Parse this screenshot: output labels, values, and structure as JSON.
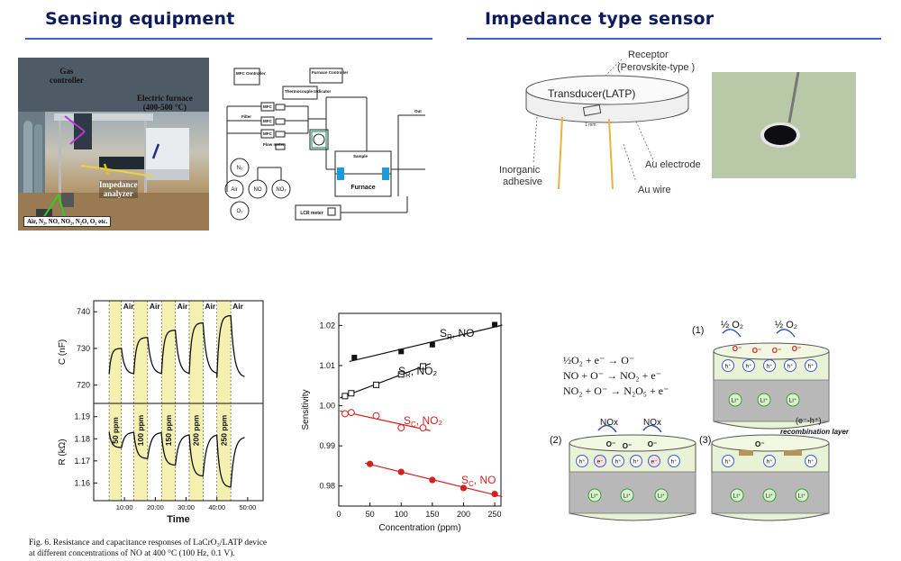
{
  "sensing": {
    "title": "Sensing equipment",
    "photo_labels": {
      "gas_controller_1": "Gas",
      "gas_controller_2": "controller",
      "furnace_1": "Electric furnace",
      "furnace_2": "(400-500 °C)",
      "impedance_1": "Impedance",
      "impedance_2": "analyzer",
      "gases": "Air, N₂, NO, NO₂, N₂O, O₂ etc."
    },
    "schematic": {
      "mfc_controller": "MFC Controller",
      "furnace_controller": "Furnace Controller",
      "thermocouple": "Thermocouple Indicator",
      "mfc": "MFC",
      "filter": "Filter",
      "flow_meter": "Flow meter",
      "n2": "N₂",
      "air": "Air",
      "no": "NO",
      "no2": "NO₂",
      "o2": "O₂",
      "sample": "Sample",
      "furnace": "Furnace",
      "out": "Out",
      "lcr": "LCR meter"
    }
  },
  "impedance_sensor": {
    "title": "Impedance type sensor",
    "receptor_1": "Receptor",
    "receptor_2": "(Perovskite-type )",
    "transducer": "Transducer(LATP)",
    "scale": "1 mm",
    "inorganic_1": "Inorganic",
    "inorganic_2": "adhesive",
    "au_electrode": "Au electrode",
    "au_wire": "Au wire"
  },
  "figure6": {
    "caption_1": "Fig. 6.   Resistance and capacitance responses of LaCrO₃/LATP device",
    "caption_2": "at different concentrations of NO at 400 °C (100 Hz, 0.1 V)."
  },
  "mechanism": {
    "eq1": "½O₂ + e⁻ → O⁻",
    "eq2": "NO + O⁻ → NO₂ + e⁻",
    "eq3": "NO₂ + O⁻ → N₂O₅ + e⁻",
    "p1": "(1)",
    "p2": "(2)",
    "p3": "(3)",
    "half_o2": "½ O₂",
    "nox": "NOx",
    "eh": "(e⁻-h⁺)",
    "recombination": "recombination layer",
    "hplus": "h⁺",
    "eminus": "e⁻",
    "ominus": "O⁻",
    "liplus": "Li⁺"
  },
  "chart_data": [
    {
      "type": "line",
      "panel": "capacitance",
      "ylabel": "C (nF)",
      "yticks": [
        720,
        730,
        740
      ],
      "ylim": [
        715,
        743
      ],
      "x_ticks": [
        "10:00",
        "20:00",
        "30:00",
        "40:00",
        "50:00"
      ],
      "xlim": [
        0,
        55
      ],
      "xlabel": "Time",
      "air_label": "Air",
      "shaded_label": [
        "50 ppm",
        "100 ppm",
        "150 ppm",
        "200 ppm",
        "250 ppm"
      ],
      "cycles": [
        {
          "label": "50 ppm",
          "start": 5,
          "end": 13,
          "base": 723,
          "peak": 730
        },
        {
          "label": "100 ppm",
          "start": 13,
          "end": 22,
          "base": 723,
          "peak": 733
        },
        {
          "label": "150 ppm",
          "start": 22,
          "end": 31,
          "base": 723,
          "peak": 735
        },
        {
          "label": "200 ppm",
          "start": 31,
          "end": 40,
          "base": 723,
          "peak": 737
        },
        {
          "label": "250 ppm",
          "start": 40,
          "end": 49,
          "base": 722,
          "peak": 739
        }
      ]
    },
    {
      "type": "line",
      "panel": "resistance",
      "ylabel": "R (kΩ)",
      "yticks": [
        1.16,
        1.17,
        1.18,
        1.19
      ],
      "ylim": [
        1.152,
        1.196
      ],
      "x_ticks": [
        "10:00",
        "20:00",
        "30:00",
        "40:00",
        "50:00"
      ],
      "xlim": [
        0,
        55
      ],
      "xlabel": "Time",
      "cycles": [
        {
          "start": 5,
          "end": 13,
          "base": 1.183,
          "min": 1.176
        },
        {
          "start": 13,
          "end": 22,
          "base": 1.183,
          "min": 1.171
        },
        {
          "start": 22,
          "end": 31,
          "base": 1.182,
          "min": 1.168
        },
        {
          "start": 31,
          "end": 40,
          "base": 1.182,
          "min": 1.163
        },
        {
          "start": 40,
          "end": 49,
          "base": 1.181,
          "min": 1.158
        }
      ]
    },
    {
      "type": "scatter",
      "panel": "sensitivity",
      "xlabel": "Concentration (ppm)",
      "ylabel": "Sensitivity",
      "xlim": [
        0,
        260
      ],
      "ylim": [
        0.975,
        1.023
      ],
      "xticks": [
        0,
        50,
        100,
        150,
        200,
        250
      ],
      "yticks": [
        0.98,
        0.99,
        1.0,
        1.01,
        1.02
      ],
      "series": [
        {
          "name": "S_R, NO",
          "main": "S",
          "sub": "R",
          "suffix": ", NO",
          "marker": "filled-square",
          "color": "#111111",
          "x": [
            25,
            100,
            150,
            250
          ],
          "y": [
            1.012,
            1.0135,
            1.0152,
            1.0202
          ]
        },
        {
          "name": "S_R, NO2",
          "main": "S",
          "sub": "R",
          "suffix": ", NO₂",
          "marker": "open-square",
          "color": "#111111",
          "x": [
            10,
            20,
            60,
            100,
            135
          ],
          "y": [
            1.0024,
            1.0031,
            1.0052,
            1.0078,
            1.0098
          ]
        },
        {
          "name": "S_C, NO2",
          "main": "S",
          "sub": "C",
          "suffix": ", NO₂",
          "marker": "open-circle",
          "color": "#d42020",
          "x": [
            10,
            20,
            60,
            100,
            135
          ],
          "y": [
            0.998,
            0.9983,
            0.9975,
            0.9945,
            0.9945
          ]
        },
        {
          "name": "S_C, NO",
          "main": "S",
          "sub": "C",
          "suffix": ", NO",
          "marker": "filled-circle",
          "color": "#d42020",
          "x": [
            50,
            100,
            150,
            200,
            250
          ],
          "y": [
            0.9855,
            0.9835,
            0.9815,
            0.9795,
            0.978
          ]
        }
      ]
    }
  ]
}
